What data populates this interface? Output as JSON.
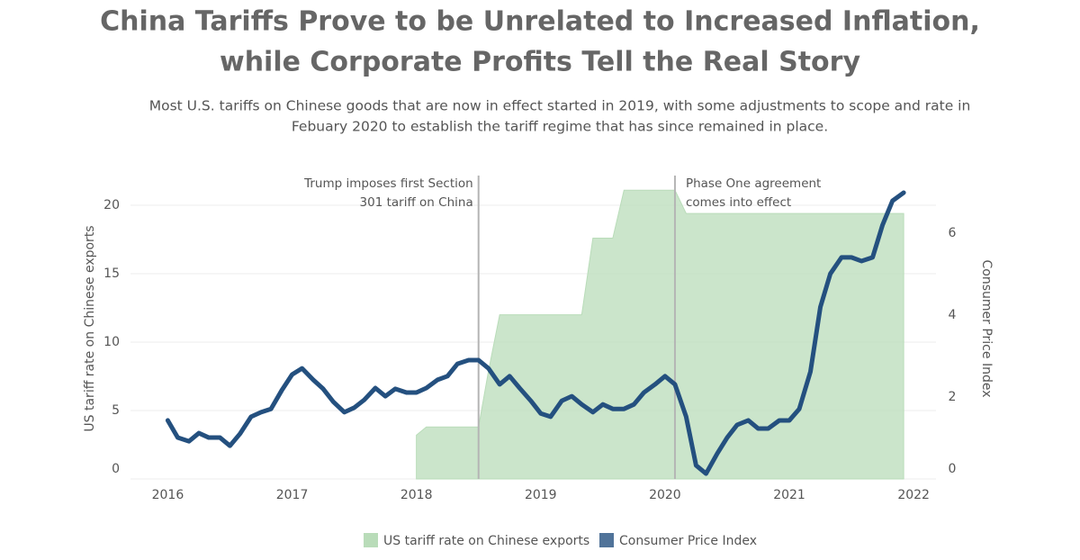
{
  "chart_data": {
    "type": "area-line",
    "title": [
      "China Tariffs Prove to be Unrelated to Increased Inflation,",
      "while Corporate Profits Tell the Real Story"
    ],
    "subtitle": [
      "Most U.S. tariffs on Chinese goods that are now in effect started in 2019, with some adjustments to scope and rate in",
      "Febuary 2020 to establish the tariff regime that has since remained in place."
    ],
    "ylabel": "US tariff rate on Chinese exports",
    "y2label": "Consumer Price Index",
    "x": [
      2016.0,
      2016.08,
      2016.17,
      2016.25,
      2016.33,
      2016.42,
      2016.5,
      2016.58,
      2016.67,
      2016.75,
      2016.83,
      2016.92,
      2017.0,
      2017.08,
      2017.17,
      2017.25,
      2017.33,
      2017.42,
      2017.5,
      2017.58,
      2017.67,
      2017.75,
      2017.83,
      2017.92,
      2018.0,
      2018.08,
      2018.17,
      2018.25,
      2018.33,
      2018.42,
      2018.5,
      2018.58,
      2018.67,
      2018.75,
      2018.83,
      2018.92,
      2019.0,
      2019.08,
      2019.17,
      2019.25,
      2019.33,
      2019.42,
      2019.5,
      2019.58,
      2019.67,
      2019.75,
      2019.83,
      2019.92,
      2020.0,
      2020.08,
      2020.17,
      2020.25,
      2020.33,
      2020.42,
      2020.5,
      2020.58,
      2020.67,
      2020.75,
      2020.83,
      2020.92,
      2021.0,
      2021.08,
      2021.17,
      2021.25,
      2021.33,
      2021.42,
      2021.5,
      2021.58,
      2021.67,
      2021.75,
      2021.83,
      2021.92
    ],
    "series": [
      {
        "name": "US tariff rate on Chinese exports",
        "color": "#b9dcb9",
        "kind": "area",
        "axis": "y",
        "values": [
          null,
          null,
          null,
          null,
          null,
          null,
          null,
          null,
          null,
          null,
          null,
          null,
          null,
          null,
          null,
          null,
          null,
          null,
          null,
          null,
          null,
          null,
          null,
          null,
          3.2,
          3.8,
          3.8,
          3.8,
          3.8,
          3.8,
          3.8,
          7.9,
          12.0,
          12.0,
          12.0,
          12.0,
          12.0,
          12.0,
          12.0,
          12.0,
          12.0,
          17.6,
          17.6,
          17.6,
          21.1,
          21.1,
          21.1,
          21.1,
          21.1,
          21.1,
          19.4,
          19.4,
          19.4,
          19.4,
          19.4,
          19.4,
          19.4,
          19.4,
          19.4,
          19.4,
          19.4,
          19.4,
          19.4,
          19.4,
          19.4,
          19.4,
          19.4,
          19.4,
          19.4,
          19.4,
          19.4,
          19.4
        ]
      },
      {
        "name": "Consumer Price Index",
        "color": "#24507f",
        "kind": "line",
        "axis": "y2",
        "values": [
          1.43,
          1.01,
          0.92,
          1.12,
          1.01,
          1.01,
          0.81,
          1.1,
          1.52,
          1.63,
          1.71,
          2.18,
          2.55,
          2.7,
          2.42,
          2.2,
          1.89,
          1.63,
          1.74,
          1.93,
          2.22,
          2.02,
          2.2,
          2.11,
          2.11,
          2.22,
          2.42,
          2.51,
          2.81,
          2.9,
          2.9,
          2.7,
          2.31,
          2.51,
          2.22,
          1.91,
          1.6,
          1.52,
          1.91,
          2.02,
          1.82,
          1.63,
          1.82,
          1.71,
          1.71,
          1.82,
          2.11,
          2.31,
          2.51,
          2.31,
          1.52,
          0.33,
          0.13,
          0.62,
          1.01,
          1.32,
          1.43,
          1.23,
          1.23,
          1.43,
          1.43,
          1.71,
          2.62,
          4.2,
          5.01,
          5.41,
          5.41,
          5.32,
          5.41,
          6.2,
          6.79,
          6.99
        ]
      }
    ],
    "annotations": [
      {
        "x": 2018.5,
        "lines": [
          "Trump imposes first Section",
          "301 tariff on China"
        ]
      },
      {
        "x": 2020.08,
        "lines": [
          "Phase One agreement",
          "comes into effect"
        ]
      }
    ],
    "xlim": [
      2015.7,
      2022.18
    ],
    "xticks": [
      2016,
      2017,
      2018,
      2019,
      2020,
      2021,
      2022
    ],
    "ylim": [
      0,
      22
    ],
    "yticks": [
      0,
      5,
      10,
      15,
      20
    ],
    "y2lim": [
      0,
      7.35
    ],
    "y2ticks": [
      0,
      2,
      4,
      6
    ],
    "grid": true
  }
}
